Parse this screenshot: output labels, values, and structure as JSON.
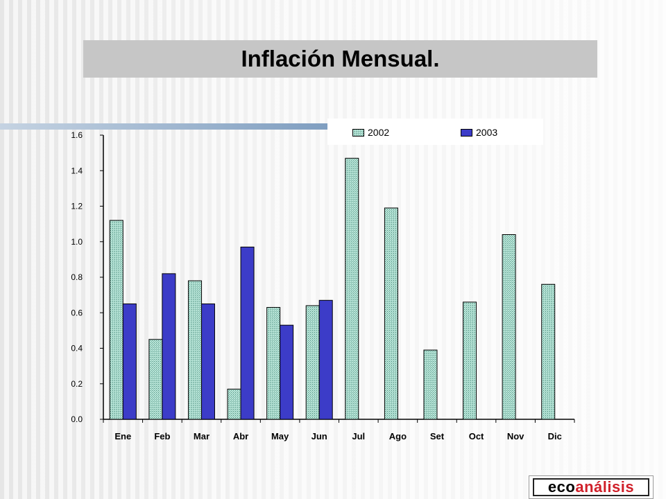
{
  "title": "Inflación Mensual.",
  "logo": {
    "part1": "eco",
    "part2": "análisis"
  },
  "colors": {
    "s2002": "#a8d8c8",
    "s2003": "#3c3cc8"
  },
  "chart_data": {
    "type": "bar",
    "categories": [
      "Ene",
      "Feb",
      "Mar",
      "Abr",
      "May",
      "Jun",
      "Jul",
      "Ago",
      "Set",
      "Oct",
      "Nov",
      "Dic"
    ],
    "series": [
      {
        "name": "2002",
        "values": [
          1.12,
          0.45,
          0.78,
          0.17,
          0.63,
          0.64,
          1.47,
          1.19,
          0.39,
          0.66,
          1.04,
          0.76
        ]
      },
      {
        "name": "2003",
        "values": [
          0.65,
          0.82,
          0.65,
          0.97,
          0.53,
          0.67,
          null,
          null,
          null,
          null,
          null,
          null
        ]
      }
    ],
    "ylim": [
      0,
      1.6
    ],
    "yticks": [
      "0.0",
      "0.2",
      "0.4",
      "0.6",
      "0.8",
      "1.0",
      "1.2",
      "1.4",
      "1.6"
    ],
    "legend": "top-right",
    "grid": false
  }
}
